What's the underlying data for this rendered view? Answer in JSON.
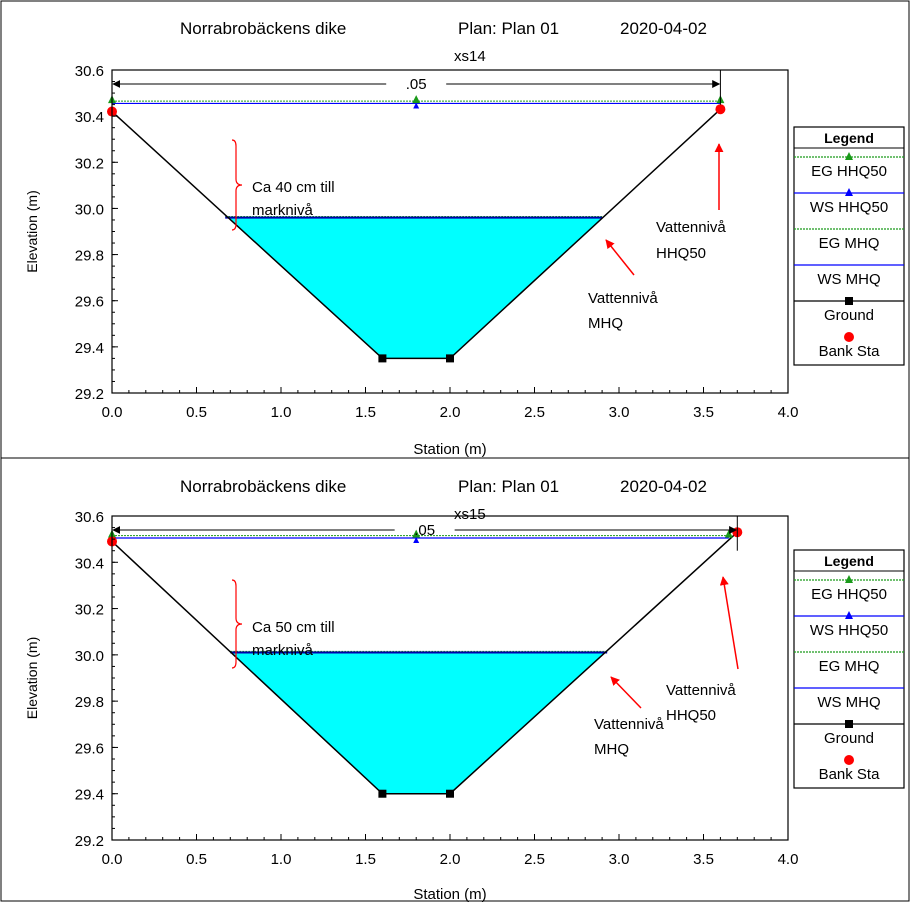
{
  "chart_data": [
    {
      "type": "line",
      "title": "Norrabrobäckens dike",
      "plan": "Plan: Plan 01",
      "date": "2020-04-02",
      "subtitle": "xs14",
      "xlabel": "Station (m)",
      "ylabel": "Elevation (m)",
      "xlim": [
        0.0,
        4.0
      ],
      "ylim": [
        29.2,
        30.6
      ],
      "xticks": [
        "0.0",
        "0.5",
        "1.0",
        "1.5",
        "2.0",
        "2.5",
        "3.0",
        "3.5",
        "4.0"
      ],
      "yticks": [
        "29.2",
        "29.4",
        "29.6",
        "29.8",
        "30.0",
        "30.2",
        "30.4",
        "30.6"
      ],
      "manning_label": ".05",
      "manning_range": [
        0.0,
        3.6
      ],
      "legend_title": "Legend",
      "legend": [
        "EG HHQ50",
        "WS HHQ50",
        "EG MHQ",
        "WS MHQ",
        "Ground",
        "Bank Sta"
      ],
      "series": [
        {
          "name": "Ground",
          "x": [
            0.0,
            1.6,
            2.0,
            3.6
          ],
          "y": [
            30.42,
            29.35,
            29.35,
            30.43
          ]
        },
        {
          "name": "WS MHQ",
          "x": [
            0.67,
            2.9
          ],
          "y": [
            29.96,
            29.96
          ]
        },
        {
          "name": "EG MHQ",
          "x": [
            0.67,
            2.9
          ],
          "y": [
            29.965,
            29.965
          ]
        },
        {
          "name": "WS HHQ50",
          "x": [
            0.0,
            1.8,
            3.6
          ],
          "y": [
            30.455,
            30.455,
            30.455
          ]
        },
        {
          "name": "EG HHQ50",
          "x": [
            0.0,
            1.8,
            3.6
          ],
          "y": [
            30.465,
            30.465,
            30.465
          ]
        },
        {
          "name": "Bank Sta",
          "x": [
            0.0,
            3.6
          ],
          "y": [
            30.42,
            30.43
          ]
        }
      ],
      "annotations": {
        "brace_text_1": "Ca 40 cm till",
        "brace_text_2": "marknivå",
        "hhq_text_1": "Vattennivå",
        "hhq_text_2": "HHQ50",
        "mhq_text_1": "Vattennivå",
        "mhq_text_2": "MHQ"
      }
    },
    {
      "type": "line",
      "title": "Norrabrobäckens dike",
      "plan": "Plan: Plan 01",
      "date": "2020-04-02",
      "subtitle": "xs15",
      "xlabel": "Station (m)",
      "ylabel": "Elevation (m)",
      "xlim": [
        0.0,
        4.0
      ],
      "ylim": [
        29.2,
        30.6
      ],
      "xticks": [
        "0.0",
        "0.5",
        "1.0",
        "1.5",
        "2.0",
        "2.5",
        "3.0",
        "3.5",
        "4.0"
      ],
      "yticks": [
        "29.2",
        "29.4",
        "29.6",
        "29.8",
        "30.0",
        "30.2",
        "30.4",
        "30.6"
      ],
      "manning_label": ".05",
      "manning_range": [
        0.0,
        3.7
      ],
      "legend_title": "Legend",
      "legend": [
        "EG HHQ50",
        "WS HHQ50",
        "EG MHQ",
        "WS MHQ",
        "Ground",
        "Bank Sta"
      ],
      "series": [
        {
          "name": "Ground",
          "x": [
            0.0,
            1.6,
            2.0,
            3.7
          ],
          "y": [
            30.49,
            29.4,
            29.4,
            30.53
          ]
        },
        {
          "name": "WS MHQ",
          "x": [
            0.7,
            2.93
          ],
          "y": [
            30.01,
            30.01
          ]
        },
        {
          "name": "EG MHQ",
          "x": [
            0.7,
            2.93
          ],
          "y": [
            30.015,
            30.015
          ]
        },
        {
          "name": "WS HHQ50",
          "x": [
            0.0,
            1.8,
            3.65
          ],
          "y": [
            30.505,
            30.505,
            30.505
          ]
        },
        {
          "name": "EG HHQ50",
          "x": [
            0.0,
            1.8,
            3.65
          ],
          "y": [
            30.515,
            30.515,
            30.515
          ]
        },
        {
          "name": "Bank Sta",
          "x": [
            0.0,
            3.7
          ],
          "y": [
            30.49,
            30.53
          ]
        }
      ],
      "annotations": {
        "brace_text_1": "Ca 50 cm till",
        "brace_text_2": "marknivå",
        "hhq_text_1": "Vattennivå",
        "hhq_text_2": "HHQ50",
        "mhq_text_1": "Vattennivå",
        "mhq_text_2": "MHQ"
      }
    }
  ]
}
